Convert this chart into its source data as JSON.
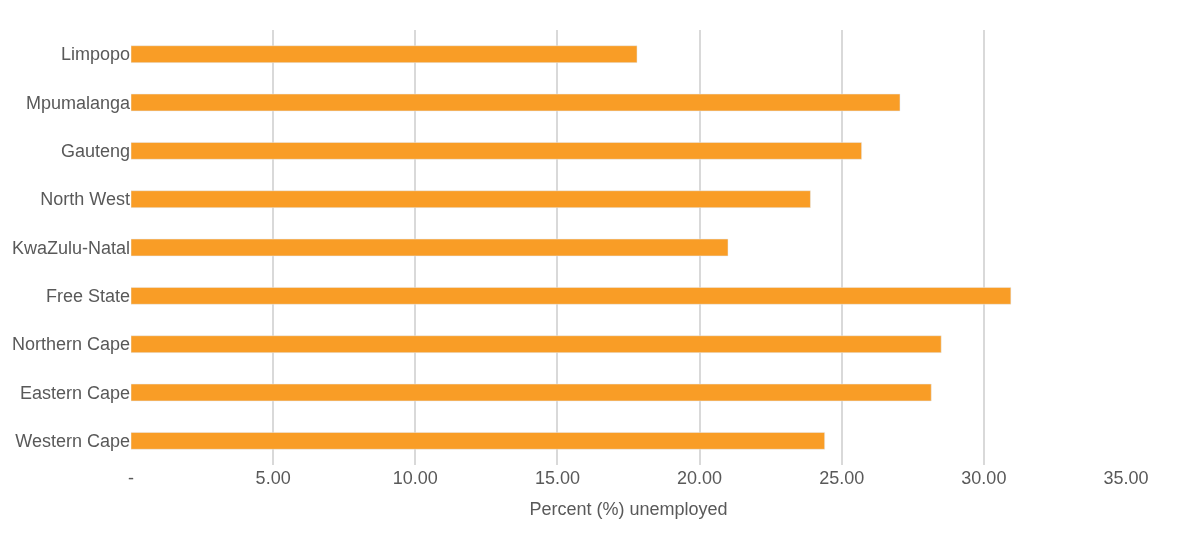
{
  "chart_data": {
    "type": "bar",
    "orientation": "horizontal",
    "xlabel": "Percent (%) unemployed",
    "categories": [
      "Limpopo",
      "Mpumalanga",
      "Gauteng",
      "North West",
      "KwaZulu-Natal",
      "Free State",
      "Northern Cape",
      "Eastern Cape",
      "Western Cape"
    ],
    "values": [
      17.8,
      27.05,
      25.7,
      23.9,
      21.0,
      30.95,
      28.5,
      28.15,
      24.4
    ],
    "color": "#f99d26",
    "xlim": [
      0,
      35
    ],
    "xticks": [
      {
        "value": 0,
        "label": "-"
      },
      {
        "value": 5,
        "label": "5.00"
      },
      {
        "value": 10,
        "label": "10.00"
      },
      {
        "value": 15,
        "label": "15.00"
      },
      {
        "value": 20,
        "label": "20.00"
      },
      {
        "value": 25,
        "label": "25.00"
      },
      {
        "value": 30,
        "label": "30.00"
      },
      {
        "value": 35,
        "label": "35.00"
      }
    ],
    "grid": "x"
  }
}
